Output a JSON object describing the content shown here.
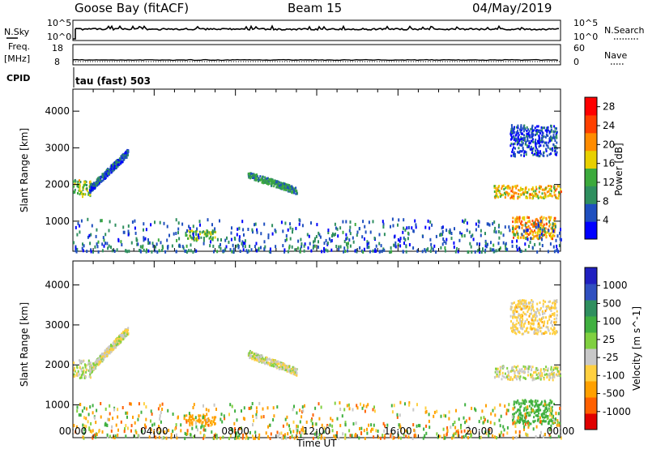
{
  "header": {
    "station": "Goose Bay (fitACF)",
    "beam": "Beam 15",
    "date": "04/May/2019"
  },
  "top_panels": {
    "nsky_label": "N.Sky",
    "nsky_ticks": [
      "10^5",
      "10^0"
    ],
    "nsearch_label": "N.Search",
    "nsearch_ticks": [
      "10^5",
      "10^0"
    ],
    "freq_label_1": "Freq.",
    "freq_label_2": "[MHz]",
    "freq_ticks": [
      "18",
      "8"
    ],
    "nave_label": "Nave",
    "nave_ticks": [
      "60",
      "0"
    ],
    "cpid_label": "CPID",
    "cpid_text": "tau (fast) 503"
  },
  "x_axis": {
    "label": "Time UT",
    "ticks": [
      "00:00",
      "04:00",
      "08:00",
      "12:00",
      "16:00",
      "20:00",
      "00:00"
    ]
  },
  "colors": {
    "frame": "#000000",
    "power": [
      "#0000ff",
      "#1f4fbf",
      "#2f8f5f",
      "#3caa3c",
      "#e8d000",
      "#ff8c00",
      "#ff4000",
      "#ff0000"
    ],
    "velocity": [
      "#e00000",
      "#ff6000",
      "#ffa000",
      "#ffd040",
      "#c8c8c8",
      "#80d040",
      "#40b040",
      "#2f8f5f",
      "#3050c0",
      "#2020c0"
    ]
  },
  "chart_data": [
    {
      "type": "heatmap",
      "title": "",
      "xlabel": "",
      "ylabel": "Slant Range [km]",
      "xlim_hours": [
        0,
        24
      ],
      "ylim_km": [
        180,
        4600
      ],
      "y_ticks": [
        "4000",
        "3000",
        "2000",
        "1000"
      ],
      "colorbar": {
        "label": "Power [dB]",
        "ticks": [
          "28",
          "24",
          "20",
          "16",
          "12",
          "8",
          "4"
        ],
        "range": [
          0,
          30
        ]
      },
      "echo_regions": [
        {
          "t0": 0.0,
          "t1": 0.9,
          "r0": 1700,
          "r1": 2150,
          "level": 14
        },
        {
          "t0": 0.8,
          "t1": 2.7,
          "r0": 1900,
          "r1": 2900,
          "level": 6
        },
        {
          "t0": 5.5,
          "t1": 7.0,
          "r0": 500,
          "r1": 780,
          "level": 14
        },
        {
          "t0": 8.6,
          "t1": 11.0,
          "r0": 1650,
          "r1": 2300,
          "level": 10
        },
        {
          "t0": 20.7,
          "t1": 24.0,
          "r0": 1650,
          "r1": 2000,
          "level": 18
        },
        {
          "t0": 21.6,
          "t1": 23.7,
          "r0": 550,
          "r1": 1150,
          "level": 20
        },
        {
          "t0": 21.5,
          "t1": 23.8,
          "r0": 2800,
          "r1": 3650,
          "level": 5
        },
        {
          "t0": 0.0,
          "t1": 24.0,
          "r0": 200,
          "r1": 1100,
          "level": 7
        }
      ]
    },
    {
      "type": "heatmap",
      "title": "",
      "xlabel": "Time UT",
      "ylabel": "Slant Range [km]",
      "xlim_hours": [
        0,
        24
      ],
      "ylim_km": [
        180,
        4600
      ],
      "y_ticks": [
        "4000",
        "3000",
        "2000",
        "1000"
      ],
      "colorbar": {
        "label": "Velocity [m s^-1]",
        "ticks": [
          "1000",
          "500",
          "100",
          "25",
          "-25",
          "-100",
          "-500",
          "-1000"
        ],
        "range": [
          -1000,
          1000
        ]
      },
      "echo_regions": [
        {
          "t0": 0.0,
          "t1": 0.9,
          "r0": 1700,
          "r1": 2150,
          "level": 0
        },
        {
          "t0": 0.8,
          "t1": 2.7,
          "r0": 1900,
          "r1": 2900,
          "level": 0
        },
        {
          "t0": 5.5,
          "t1": 7.0,
          "r0": 500,
          "r1": 780,
          "level": -150
        },
        {
          "t0": 8.6,
          "t1": 11.0,
          "r0": 1650,
          "r1": 2300,
          "level": 0
        },
        {
          "t0": 20.7,
          "t1": 24.0,
          "r0": 1650,
          "r1": 2000,
          "level": 0
        },
        {
          "t0": 21.6,
          "t1": 23.7,
          "r0": 550,
          "r1": 1150,
          "level": 150
        },
        {
          "t0": 21.5,
          "t1": 23.8,
          "r0": 2800,
          "r1": 3650,
          "level": -50
        },
        {
          "t0": 0.0,
          "t1": 24.0,
          "r0": 200,
          "r1": 1100,
          "level": -60
        }
      ]
    }
  ]
}
